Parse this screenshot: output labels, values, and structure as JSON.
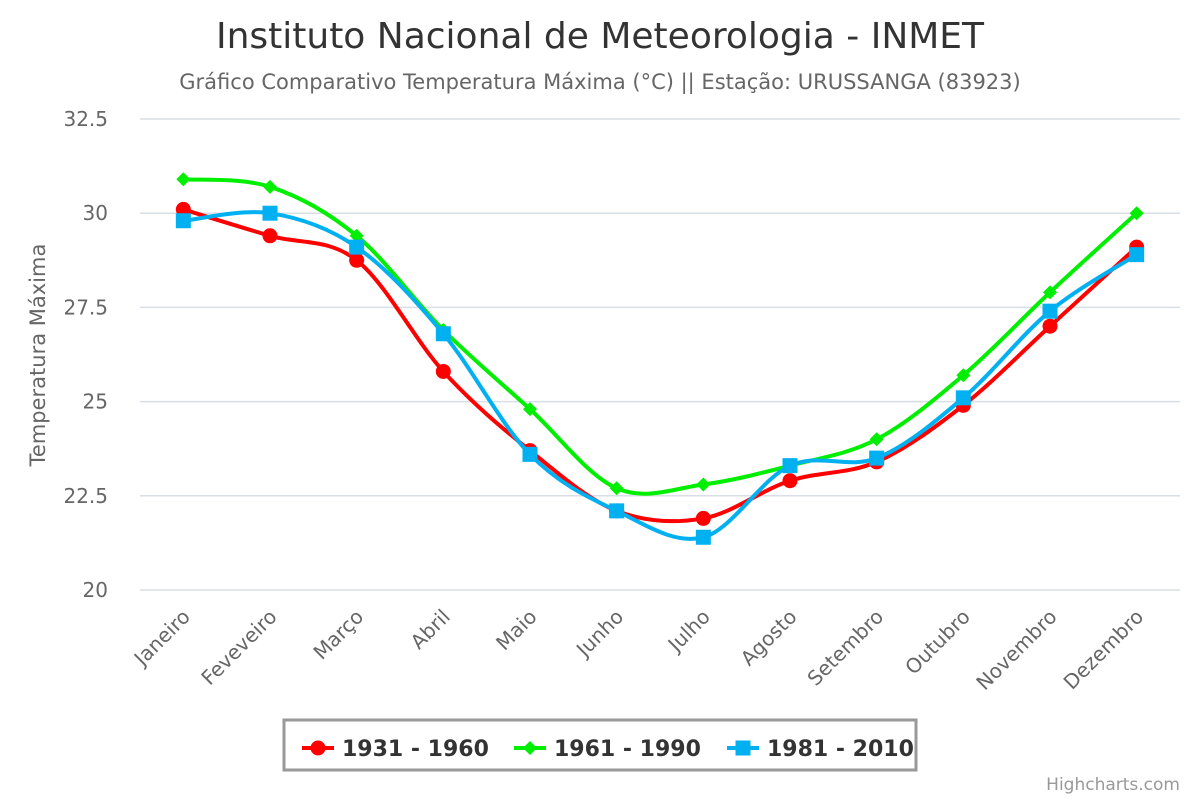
{
  "chart_data": {
    "type": "line",
    "title": "Instituto Nacional de Meteorologia - INMET",
    "subtitle": "Gráfico Comparativo Temperatura Máxima (°C) || Estação: URUSSANGA (83923)",
    "xlabel": "",
    "ylabel": "Temperatura Máxima",
    "ylim": [
      20,
      32.5
    ],
    "yticks": [
      "20",
      "22.5",
      "25",
      "27.5",
      "30",
      "32.5"
    ],
    "grid": true,
    "legend_position": "bottom-center",
    "categories": [
      "Janeiro",
      "Feveveiro",
      "Março",
      "Abril",
      "Maio",
      "Junho",
      "Julho",
      "Agosto",
      "Setembro",
      "Outubro",
      "Novembro",
      "Dezembro"
    ],
    "series": [
      {
        "name": "1931 - 1960",
        "color": "#ff0000",
        "marker": "circle",
        "values": [
          30.1,
          29.4,
          28.75,
          25.8,
          23.7,
          22.1,
          21.9,
          22.9,
          23.4,
          24.9,
          27.0,
          29.1
        ]
      },
      {
        "name": "1961 - 1990",
        "color": "#00ee00",
        "marker": "diamond",
        "values": [
          30.9,
          30.7,
          29.4,
          26.9,
          24.8,
          22.7,
          22.8,
          23.3,
          24.0,
          25.7,
          27.9,
          30.0
        ]
      },
      {
        "name": "1981 - 2010",
        "color": "#00b0f0",
        "marker": "square",
        "values": [
          29.8,
          30.0,
          29.1,
          26.8,
          23.6,
          22.1,
          21.4,
          23.3,
          23.5,
          25.1,
          27.4,
          28.9
        ]
      }
    ]
  },
  "credits": "Highcharts.com"
}
